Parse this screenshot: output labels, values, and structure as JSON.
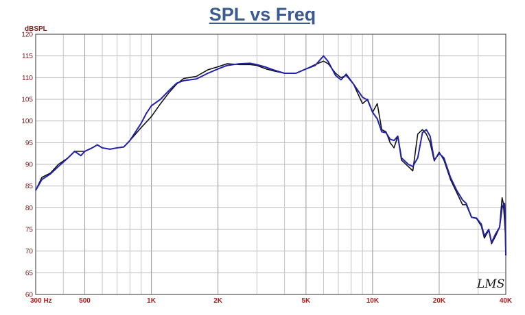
{
  "chart_data": {
    "type": "line",
    "title": "SPL vs Freq",
    "ylabel": "dBSPL",
    "xlabel": "",
    "xscale": "log",
    "xlim": [
      300,
      40000
    ],
    "ylim": [
      60,
      120
    ],
    "yticks": [
      "120",
      "115",
      "110",
      "105",
      "100",
      "95",
      "90",
      "85",
      "80",
      "75",
      "70",
      "65",
      "60"
    ],
    "xticks": [
      {
        "value": 300,
        "label": "300 Hz"
      },
      {
        "value": 500,
        "label": "500"
      },
      {
        "value": 1000,
        "label": "1K"
      },
      {
        "value": 2000,
        "label": "2K"
      },
      {
        "value": 5000,
        "label": "5K"
      },
      {
        "value": 10000,
        "label": "10K"
      },
      {
        "value": 20000,
        "label": "20K"
      },
      {
        "value": 40000,
        "label": "40K"
      }
    ],
    "grid": true,
    "logo_text": "LMS",
    "series": [
      {
        "color": "#111111",
        "points": [
          [
            300,
            84
          ],
          [
            320,
            87
          ],
          [
            350,
            88
          ],
          [
            380,
            90
          ],
          [
            420,
            91.5
          ],
          [
            450,
            93
          ],
          [
            500,
            93
          ],
          [
            540,
            93.8
          ],
          [
            570,
            94.5
          ],
          [
            600,
            93.8
          ],
          [
            650,
            93.5
          ],
          [
            700,
            93.8
          ],
          [
            750,
            94
          ],
          [
            800,
            95.5
          ],
          [
            900,
            98.5
          ],
          [
            1000,
            101
          ],
          [
            1100,
            104
          ],
          [
            1200,
            106.5
          ],
          [
            1300,
            108.5
          ],
          [
            1400,
            109.8
          ],
          [
            1600,
            110.3
          ],
          [
            1800,
            111.8
          ],
          [
            2000,
            112.5
          ],
          [
            2200,
            113.2
          ],
          [
            2500,
            113
          ],
          [
            2800,
            113
          ],
          [
            3000,
            112.8
          ],
          [
            3300,
            112
          ],
          [
            3600,
            111.5
          ],
          [
            4000,
            111
          ],
          [
            4500,
            111
          ],
          [
            5000,
            112
          ],
          [
            5500,
            113
          ],
          [
            6000,
            113.8
          ],
          [
            6300,
            113.2
          ],
          [
            6800,
            111
          ],
          [
            7200,
            110
          ],
          [
            7600,
            110.5
          ],
          [
            8200,
            108.5
          ],
          [
            9000,
            104
          ],
          [
            9500,
            105
          ],
          [
            10000,
            102
          ],
          [
            10500,
            104
          ],
          [
            11000,
            98
          ],
          [
            11500,
            97.5
          ],
          [
            12000,
            95
          ],
          [
            12500,
            93.8
          ],
          [
            13000,
            96.5
          ],
          [
            13500,
            91
          ],
          [
            14500,
            89.5
          ],
          [
            15200,
            88.5
          ],
          [
            16000,
            97
          ],
          [
            16800,
            98
          ],
          [
            17500,
            97
          ],
          [
            18200,
            95
          ],
          [
            19000,
            90.8
          ],
          [
            20000,
            92.8
          ],
          [
            21000,
            91
          ],
          [
            22500,
            86.5
          ],
          [
            24000,
            83.5
          ],
          [
            25500,
            80.7
          ],
          [
            26500,
            80.7
          ],
          [
            28000,
            77.8
          ],
          [
            29500,
            77.5
          ],
          [
            31000,
            75.8
          ],
          [
            32000,
            73
          ],
          [
            33500,
            74.8
          ],
          [
            34500,
            71.7
          ],
          [
            36000,
            73.5
          ],
          [
            37500,
            75.5
          ],
          [
            38500,
            82.3
          ],
          [
            39000,
            81
          ],
          [
            39500,
            77
          ],
          [
            39800,
            74
          ],
          [
            40000,
            69
          ]
        ]
      },
      {
        "color": "#2222aa",
        "points": [
          [
            300,
            84
          ],
          [
            320,
            86.5
          ],
          [
            350,
            87.8
          ],
          [
            380,
            89.5
          ],
          [
            420,
            91.5
          ],
          [
            450,
            93
          ],
          [
            480,
            92
          ],
          [
            500,
            93
          ],
          [
            540,
            93.8
          ],
          [
            570,
            94.5
          ],
          [
            600,
            93.8
          ],
          [
            650,
            93.5
          ],
          [
            700,
            93.8
          ],
          [
            750,
            94
          ],
          [
            800,
            95.5
          ],
          [
            900,
            99.5
          ],
          [
            950,
            101.8
          ],
          [
            1000,
            103.5
          ],
          [
            1100,
            105
          ],
          [
            1200,
            107
          ],
          [
            1300,
            108.7
          ],
          [
            1400,
            109.3
          ],
          [
            1600,
            109.7
          ],
          [
            1800,
            111
          ],
          [
            2000,
            112
          ],
          [
            2200,
            112.8
          ],
          [
            2500,
            113.2
          ],
          [
            2800,
            113.3
          ],
          [
            3000,
            113
          ],
          [
            3300,
            112.4
          ],
          [
            3600,
            111.7
          ],
          [
            4000,
            111
          ],
          [
            4500,
            111
          ],
          [
            5000,
            112
          ],
          [
            5500,
            112.8
          ],
          [
            6000,
            115
          ],
          [
            6300,
            113.7
          ],
          [
            6800,
            110.5
          ],
          [
            7200,
            109.5
          ],
          [
            7600,
            110.8
          ],
          [
            8200,
            108.5
          ],
          [
            9000,
            105.5
          ],
          [
            9500,
            104.8
          ],
          [
            10000,
            102
          ],
          [
            10500,
            100.5
          ],
          [
            11000,
            97.5
          ],
          [
            11500,
            97.3
          ],
          [
            12000,
            95.8
          ],
          [
            12500,
            95.5
          ],
          [
            13000,
            96.5
          ],
          [
            13500,
            91.5
          ],
          [
            14500,
            90
          ],
          [
            15200,
            89.5
          ],
          [
            16000,
            91.5
          ],
          [
            16800,
            97.3
          ],
          [
            17500,
            98
          ],
          [
            18200,
            96.5
          ],
          [
            19000,
            91
          ],
          [
            20000,
            92.5
          ],
          [
            21000,
            91.5
          ],
          [
            22500,
            87
          ],
          [
            24000,
            84
          ],
          [
            25500,
            81.8
          ],
          [
            26500,
            81
          ],
          [
            28000,
            77.8
          ],
          [
            29500,
            77.6
          ],
          [
            31000,
            76.2
          ],
          [
            32000,
            73.5
          ],
          [
            33500,
            75
          ],
          [
            34500,
            72
          ],
          [
            36000,
            74
          ],
          [
            37500,
            75.5
          ],
          [
            38500,
            80
          ],
          [
            39000,
            80.7
          ],
          [
            39500,
            81
          ],
          [
            39800,
            78
          ],
          [
            40000,
            69
          ]
        ]
      }
    ]
  }
}
